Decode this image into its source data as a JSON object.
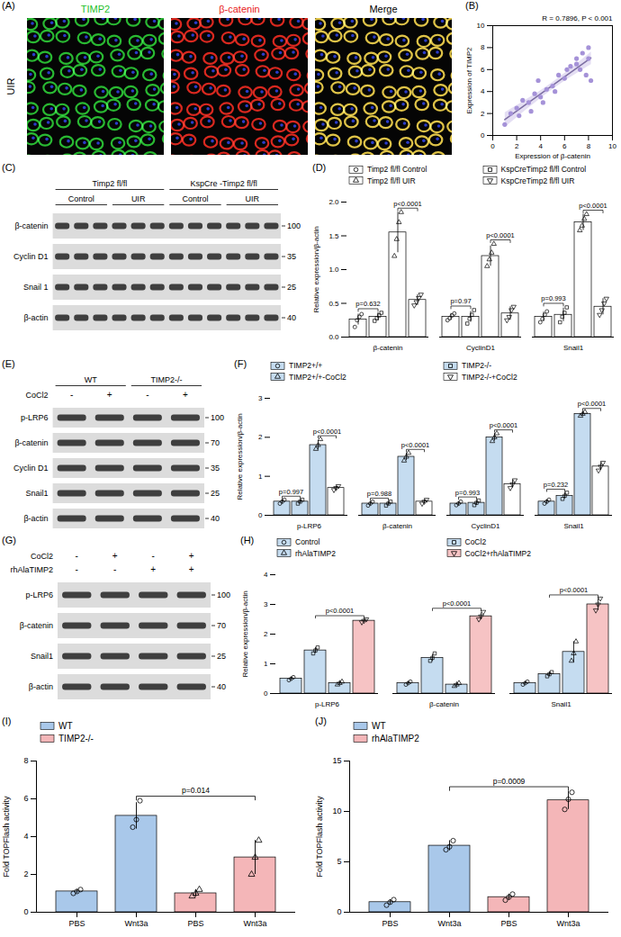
{
  "chart_data": [
    {
      "label": "(B)",
      "type": "scatter",
      "x": [
        1.0,
        1.5,
        2.0,
        2.2,
        2.5,
        3.0,
        3.2,
        3.5,
        3.8,
        4.0,
        4.2,
        4.5,
        5.0,
        5.2,
        5.5,
        6.0,
        6.2,
        6.5,
        7.0,
        7.0,
        7.3,
        7.5,
        7.8,
        8.0,
        8.0,
        8.2
      ],
      "y": [
        1.0,
        2.0,
        2.5,
        1.8,
        3.2,
        3.0,
        2.2,
        3.8,
        5.0,
        3.5,
        3.0,
        4.2,
        4.5,
        4.0,
        5.5,
        5.2,
        6.0,
        6.3,
        6.5,
        7.0,
        6.0,
        7.5,
        5.5,
        8.0,
        7.0,
        5.0
      ],
      "xlabel": "Expression of β-catenin",
      "ylabel": "Expression of TIMP2",
      "xlim": [
        0,
        10
      ],
      "xticks": [
        0,
        2,
        4,
        6,
        8,
        10
      ],
      "ylim": [
        0,
        10
      ],
      "yticks": [
        0,
        2,
        4,
        6,
        8,
        10
      ],
      "color": "#a592d8",
      "annotations": [
        {
          "text": "R = 0.7896, P < 0.001"
        }
      ]
    },
    {
      "label": "(D)",
      "type": "bar",
      "categories": [
        "β-catenin",
        "CyclinD1",
        "Snail1"
      ],
      "ylabel": "Relative expression/β-actin",
      "ylim": [
        0,
        2
      ],
      "yticks": [
        {
          "value": 0,
          "label": "0.0"
        },
        {
          "value": 0.5,
          "label": "0.5"
        },
        {
          "value": 1,
          "label": "1.0"
        },
        {
          "value": 1.5,
          "label": "1.5"
        },
        {
          "value": 2,
          "label": "2.0"
        }
      ],
      "legend": "top",
      "series": [
        {
          "name": "Timp2 fl/fl Control",
          "color": "#ffffff",
          "marker": "circle",
          "values": [
            0.26,
            0.3,
            0.3
          ],
          "errors": [
            0.08,
            0.05,
            0.07
          ],
          "points": [
            [
              0.15,
              0.25,
              0.3,
              0.34
            ],
            [
              0.25,
              0.28,
              0.32,
              0.35
            ],
            [
              0.22,
              0.27,
              0.33,
              0.38
            ]
          ]
        },
        {
          "name": "KspCreTimp2 fl/fl Control",
          "color": "#ffffff",
          "marker": "square",
          "values": [
            0.3,
            0.3,
            0.33
          ],
          "errors": [
            0.06,
            0.08,
            0.1
          ],
          "points": [
            [
              0.24,
              0.28,
              0.32,
              0.36
            ],
            [
              0.2,
              0.27,
              0.33,
              0.4
            ],
            [
              0.22,
              0.3,
              0.36,
              0.44
            ]
          ]
        },
        {
          "name": "Timp2 fl/fl UIR",
          "color": "#ffffff",
          "marker": "triangle",
          "values": [
            1.55,
            1.2,
            1.7
          ],
          "errors": [
            0.3,
            0.15,
            0.12
          ],
          "points": [
            [
              1.2,
              1.45,
              1.7,
              1.85
            ],
            [
              1.05,
              1.15,
              1.25,
              1.38
            ],
            [
              1.58,
              1.65,
              1.75,
              1.82
            ]
          ]
        },
        {
          "name": "KspCreTimp2 fl/fl UIR",
          "color": "#ffffff",
          "marker": "triangle-down",
          "values": [
            0.55,
            0.35,
            0.45
          ],
          "errors": [
            0.08,
            0.1,
            0.12
          ],
          "points": [
            [
              0.47,
              0.52,
              0.58,
              0.63
            ],
            [
              0.25,
              0.3,
              0.4,
              0.45
            ],
            [
              0.33,
              0.4,
              0.5,
              0.57
            ]
          ]
        }
      ],
      "annotations": [
        {
          "category": "β-catenin",
          "between": [
            "Timp2 fl/fl Control",
            "KspCreTimp2 fl/fl Control"
          ],
          "text": "p=0.632"
        },
        {
          "category": "β-catenin",
          "between": [
            "Timp2 fl/fl UIR",
            "KspCreTimp2 fl/fl UIR"
          ],
          "text": "p<0.0001"
        },
        {
          "category": "CyclinD1",
          "between": [
            "Timp2 fl/fl Control",
            "KspCreTimp2 fl/fl Control"
          ],
          "text": "p=0.97"
        },
        {
          "category": "CyclinD1",
          "between": [
            "Timp2 fl/fl UIR",
            "KspCreTimp2 fl/fl UIR"
          ],
          "text": "p<0.0001"
        },
        {
          "category": "Snail1",
          "between": [
            "Timp2 fl/fl Control",
            "KspCreTimp2 fl/fl Control"
          ],
          "text": "p=0.993"
        },
        {
          "category": "Snail1",
          "between": [
            "Timp2 fl/fl UIR",
            "KspCreTimp2 fl/fl UIR"
          ],
          "text": "p<0.0001"
        }
      ]
    },
    {
      "label": "(F)",
      "type": "bar",
      "categories": [
        "p-LRP6",
        "β-catenin",
        "CyclinD1",
        "Snail1"
      ],
      "ylabel": "Relative expression/β-actin",
      "ylim": [
        0,
        3
      ],
      "yticks": [
        0,
        1,
        2,
        3
      ],
      "legend": "top",
      "series": [
        {
          "name": "TIMP2+/+",
          "color": "#c5dcf0",
          "marker": "circle",
          "values": [
            0.35,
            0.3,
            0.3,
            0.35
          ],
          "errors": [
            0.05,
            0.05,
            0.05,
            0.05
          ],
          "points": [
            [
              0.3,
              0.35,
              0.4
            ],
            [
              0.25,
              0.3,
              0.35
            ],
            [
              0.26,
              0.3,
              0.35
            ],
            [
              0.3,
              0.35,
              0.4
            ]
          ]
        },
        {
          "name": "TIMP2-/-",
          "color": "#c5dcf0",
          "marker": "square",
          "values": [
            0.35,
            0.3,
            0.32,
            0.5
          ],
          "errors": [
            0.05,
            0.05,
            0.06,
            0.08
          ],
          "points": [
            [
              0.3,
              0.35,
              0.4
            ],
            [
              0.25,
              0.3,
              0.35
            ],
            [
              0.26,
              0.32,
              0.38
            ],
            [
              0.42,
              0.5,
              0.58
            ]
          ]
        },
        {
          "name": "TIMP2+/+-CoCl2",
          "color": "#c5dcf0",
          "marker": "triangle",
          "values": [
            1.8,
            1.5,
            2.0,
            2.6
          ],
          "errors": [
            0.12,
            0.1,
            0.1,
            0.05
          ],
          "points": [
            [
              1.7,
              1.8,
              1.95
            ],
            [
              1.4,
              1.5,
              1.6
            ],
            [
              1.9,
              2.0,
              2.1
            ],
            [
              2.55,
              2.6,
              2.65
            ]
          ]
        },
        {
          "name": "TIMP2-/-+CoCl2",
          "color": "#ffffff",
          "marker": "triangle-down",
          "values": [
            0.7,
            0.35,
            0.8,
            1.25
          ],
          "errors": [
            0.05,
            0.05,
            0.1,
            0.1
          ],
          "points": [
            [
              0.65,
              0.7,
              0.75
            ],
            [
              0.3,
              0.35,
              0.4
            ],
            [
              0.7,
              0.8,
              0.9
            ],
            [
              1.15,
              1.25,
              1.35
            ]
          ]
        }
      ],
      "annotations": [
        {
          "category": "p-LRP6",
          "between": [
            "TIMP2+/+",
            "TIMP2-/-"
          ],
          "text": "p=0.997"
        },
        {
          "category": "p-LRP6",
          "between": [
            "TIMP2+/+-CoCl2",
            "TIMP2-/-+CoCl2"
          ],
          "text": "p<0.0001"
        },
        {
          "category": "β-catenin",
          "between": [
            "TIMP2+/+",
            "TIMP2-/-"
          ],
          "text": "p=0.988"
        },
        {
          "category": "β-catenin",
          "between": [
            "TIMP2+/+-CoCl2",
            "TIMP2-/-+CoCl2"
          ],
          "text": "p<0.0001"
        },
        {
          "category": "CyclinD1",
          "between": [
            "TIMP2+/+",
            "TIMP2-/-"
          ],
          "text": "p=0.993"
        },
        {
          "category": "CyclinD1",
          "between": [
            "TIMP2+/+-CoCl2",
            "TIMP2-/-+CoCl2"
          ],
          "text": "p<0.0001"
        },
        {
          "category": "Snail1",
          "between": [
            "TIMP2+/+",
            "TIMP2-/-"
          ],
          "text": "p=0.232"
        },
        {
          "category": "Snail1",
          "between": [
            "TIMP2+/+-CoCl2",
            "TIMP2-/-+CoCl2"
          ],
          "text": "p<0.0001"
        }
      ]
    },
    {
      "label": "(H)",
      "type": "bar",
      "categories": [
        "p-LRP6",
        "β-catenin",
        "Snail1"
      ],
      "ylabel": "Relative expression/β-actin",
      "ylim": [
        0,
        4
      ],
      "yticks": [
        0,
        1,
        2,
        3,
        4
      ],
      "legend": "top",
      "series": [
        {
          "name": "Control",
          "color": "#c5dcf0",
          "marker": "circle",
          "values": [
            0.5,
            0.35,
            0.35
          ],
          "errors": [
            0.05,
            0.05,
            0.05
          ],
          "points": [
            [
              0.45,
              0.5,
              0.55
            ],
            [
              0.3,
              0.35,
              0.4
            ],
            [
              0.3,
              0.35,
              0.4
            ]
          ]
        },
        {
          "name": "CoCl2",
          "color": "#c5dcf0",
          "marker": "square",
          "values": [
            1.45,
            1.2,
            0.65
          ],
          "errors": [
            0.1,
            0.12,
            0.08
          ],
          "points": [
            [
              1.35,
              1.45,
              1.55
            ],
            [
              1.1,
              1.2,
              1.35
            ],
            [
              0.58,
              0.65,
              0.72
            ]
          ]
        },
        {
          "name": "rhAlaTIMP2",
          "color": "#c5dcf0",
          "marker": "triangle",
          "values": [
            0.35,
            0.3,
            1.4
          ],
          "errors": [
            0.05,
            0.05,
            0.35
          ],
          "points": [
            [
              0.3,
              0.35,
              0.4
            ],
            [
              0.25,
              0.3,
              0.35
            ],
            [
              1.1,
              1.35,
              1.75
            ]
          ]
        },
        {
          "name": "CoCl2+rhAlaTIMP2",
          "color": "#f6c3c4",
          "marker": "triangle-down",
          "values": [
            2.45,
            2.6,
            3.0
          ],
          "errors": [
            0.05,
            0.12,
            0.2
          ],
          "points": [
            [
              2.4,
              2.45,
              2.5
            ],
            [
              2.5,
              2.6,
              2.75
            ],
            [
              2.8,
              3.0,
              3.2
            ]
          ]
        }
      ],
      "annotations": [
        {
          "category": "p-LRP6",
          "between": [
            "CoCl2",
            "CoCl2+rhAlaTIMP2"
          ],
          "text": "p<0.0001"
        },
        {
          "category": "β-catenin",
          "between": [
            "CoCl2",
            "CoCl2+rhAlaTIMP2"
          ],
          "text": "p<0.0001"
        },
        {
          "category": "Snail1",
          "between": [
            "CoCl2",
            "CoCl2+rhAlaTIMP2"
          ],
          "text": "p<0.0001"
        }
      ]
    },
    {
      "label": "(I)",
      "type": "bar",
      "categories": [
        "PBS",
        "Wnt3a",
        "PBS",
        "Wnt3a"
      ],
      "ylabel": "Fold TOPFlash activity",
      "ylim": [
        0,
        8
      ],
      "yticks": [
        0,
        2,
        4,
        6,
        8
      ],
      "legend": "top-left",
      "series": [
        {
          "name": "WT",
          "color": "#a9c8ea",
          "marker": "circle",
          "values": [
            1.1,
            5.1,
            null,
            null
          ],
          "errors": [
            0.1,
            0.7,
            null,
            null
          ],
          "points": [
            [
              1.0,
              1.1,
              1.2
            ],
            [
              4.5,
              4.9,
              5.9
            ],
            null,
            null
          ]
        },
        {
          "name": "TIMP2-/-",
          "color": "#f4b6b8",
          "marker": "triangle",
          "values": [
            null,
            null,
            1.0,
            2.9
          ],
          "errors": [
            null,
            null,
            0.2,
            0.9
          ],
          "points": [
            null,
            null,
            [
              0.85,
              1.0,
              1.2
            ],
            [
              2.0,
              2.9,
              3.8
            ]
          ]
        }
      ],
      "annotations": [
        {
          "between": [
            1,
            3
          ],
          "text": "p=0.014"
        }
      ]
    },
    {
      "label": "(J)",
      "type": "bar",
      "categories": [
        "PBS",
        "Wnt3a",
        "PBS",
        "Wnt3a"
      ],
      "ylabel": "Fold TOPFlash activity",
      "ylim": [
        0,
        15
      ],
      "yticks": [
        0,
        5,
        10,
        15
      ],
      "legend": "top-left",
      "series": [
        {
          "name": "WT",
          "color": "#a9c8ea",
          "marker": "circle",
          "values": [
            1.0,
            6.6,
            null,
            null
          ],
          "errors": [
            0.25,
            0.5,
            null,
            null
          ],
          "points": [
            [
              0.7,
              1.0,
              1.25
            ],
            [
              6.2,
              6.5,
              7.1
            ],
            null,
            null
          ]
        },
        {
          "name": "rhAlaTIMP2",
          "color": "#f4b6b8",
          "marker": "circle",
          "values": [
            null,
            null,
            1.5,
            11.1
          ],
          "errors": [
            null,
            null,
            0.3,
            0.9
          ],
          "points": [
            null,
            null,
            [
              1.2,
              1.5,
              1.8
            ],
            [
              10.2,
              11.2,
              11.9
            ]
          ]
        }
      ],
      "annotations": [
        {
          "between": [
            1,
            3
          ],
          "text": "p=0.0009"
        }
      ]
    }
  ],
  "figure_panels": [
    {
      "label": "(A)",
      "type": "immunofluorescence",
      "row_label": "UIR",
      "images": [
        {
          "title": "TIMP2",
          "title_color": "#1fbf2a",
          "channels": [
            "#2bd936"
          ]
        },
        {
          "title": "β-catenin",
          "title_color": "#e8221c",
          "channels": [
            "#ff2a1f"
          ]
        },
        {
          "title": "Merge",
          "title_color": "#000000",
          "channels": [
            "#2bd936",
            "#ff2a1f"
          ]
        }
      ]
    },
    {
      "label": "(C)",
      "type": "western_blot",
      "lanes": 12,
      "header_rows": [
        [
          {
            "text": "Timp2 fl/fl",
            "span": 6
          },
          {
            "text": "KspCre -Timp2 fl/fl",
            "span": 6
          }
        ],
        [
          {
            "text": "Control",
            "span": 3
          },
          {
            "text": "UIR",
            "span": 3
          },
          {
            "text": "Control",
            "span": 3
          },
          {
            "text": "UIR",
            "span": 3
          }
        ]
      ],
      "rows": [
        {
          "protein": "β-catenin",
          "mw": 100
        },
        {
          "protein": "Cyclin D1",
          "mw": 35
        },
        {
          "protein": "Snail 1",
          "mw": 25
        },
        {
          "protein": "β-actin",
          "mw": 40
        }
      ]
    },
    {
      "label": "(E)",
      "type": "western_blot",
      "lanes": 4,
      "header_rows": [
        [
          {
            "text": "WT",
            "span": 2
          },
          {
            "text": "TIMP2-/-",
            "span": 2
          }
        ]
      ],
      "sign_rows": [
        {
          "name": "CoCl2",
          "signs": [
            "-",
            "+",
            "-",
            "+"
          ]
        }
      ],
      "rows": [
        {
          "protein": "p-LRP6",
          "mw": 100
        },
        {
          "protein": "β-catenin",
          "mw": 70
        },
        {
          "protein": "Cyclin D1",
          "mw": 35
        },
        {
          "protein": "Snail1",
          "mw": 25
        },
        {
          "protein": "β-actin",
          "mw": 40
        }
      ]
    },
    {
      "label": "(G)",
      "type": "western_blot",
      "lanes": 4,
      "sign_rows": [
        {
          "name": "CoCl2",
          "signs": [
            "-",
            "+",
            "-",
            "+"
          ]
        },
        {
          "name": "rhAlaTIMP2",
          "signs": [
            "-",
            "-",
            "+",
            "+"
          ]
        }
      ],
      "rows": [
        {
          "protein": "p-LRP6",
          "mw": 100
        },
        {
          "protein": "β-catenin",
          "mw": 70
        },
        {
          "protein": "Snail1",
          "mw": 25
        },
        {
          "protein": "β-actin",
          "mw": 40
        }
      ]
    }
  ]
}
